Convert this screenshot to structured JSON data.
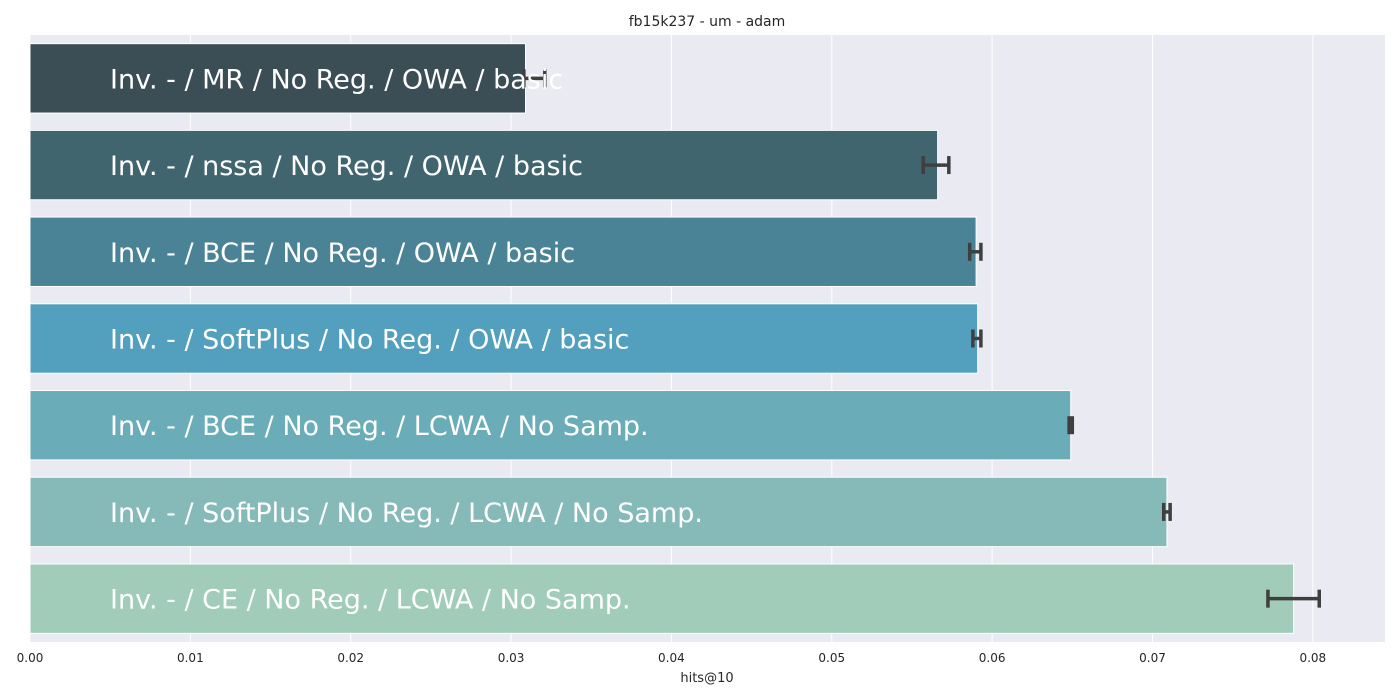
{
  "chart_data": {
    "type": "bar",
    "orientation": "horizontal",
    "title": "fb15k237 - um - adam",
    "xlabel": "hits@10",
    "ylabel": "",
    "xlim": [
      0.0,
      0.0845
    ],
    "xticks": [
      "0.00",
      "0.01",
      "0.02",
      "0.03",
      "0.04",
      "0.05",
      "0.06",
      "0.07",
      "0.08"
    ],
    "grid": true,
    "background": "#eaeaf2",
    "error_bar_color": "#3f3f3f",
    "categories": [
      "Inv. - / MR / No Reg. / OWA / basic",
      "Inv. - / nssa / No Reg. / OWA / basic",
      "Inv. - / BCE / No Reg. / OWA / basic",
      "Inv. - / SoftPlus / No Reg. / OWA / basic",
      "Inv. - / BCE / No Reg. / LCWA / No Samp.",
      "Inv. - / SoftPlus / No Reg. / LCWA / No Samp.",
      "Inv. - / CE / No Reg. / LCWA / No Samp."
    ],
    "values": [
      0.0309,
      0.0566,
      0.059,
      0.0591,
      0.0649,
      0.0709,
      0.0788
    ],
    "errors": [
      [
        0.0308,
        0.0321
      ],
      [
        0.0557,
        0.0573
      ],
      [
        0.0586,
        0.0593
      ],
      [
        0.0588,
        0.0593
      ],
      [
        0.0648,
        0.065
      ],
      [
        0.0707,
        0.0711
      ],
      [
        0.0772,
        0.0804
      ]
    ],
    "colors": [
      "#3b4e56",
      "#41656f",
      "#4a8396",
      "#52a0be",
      "#6aacb7",
      "#85bab9",
      "#a1ccb9"
    ]
  }
}
